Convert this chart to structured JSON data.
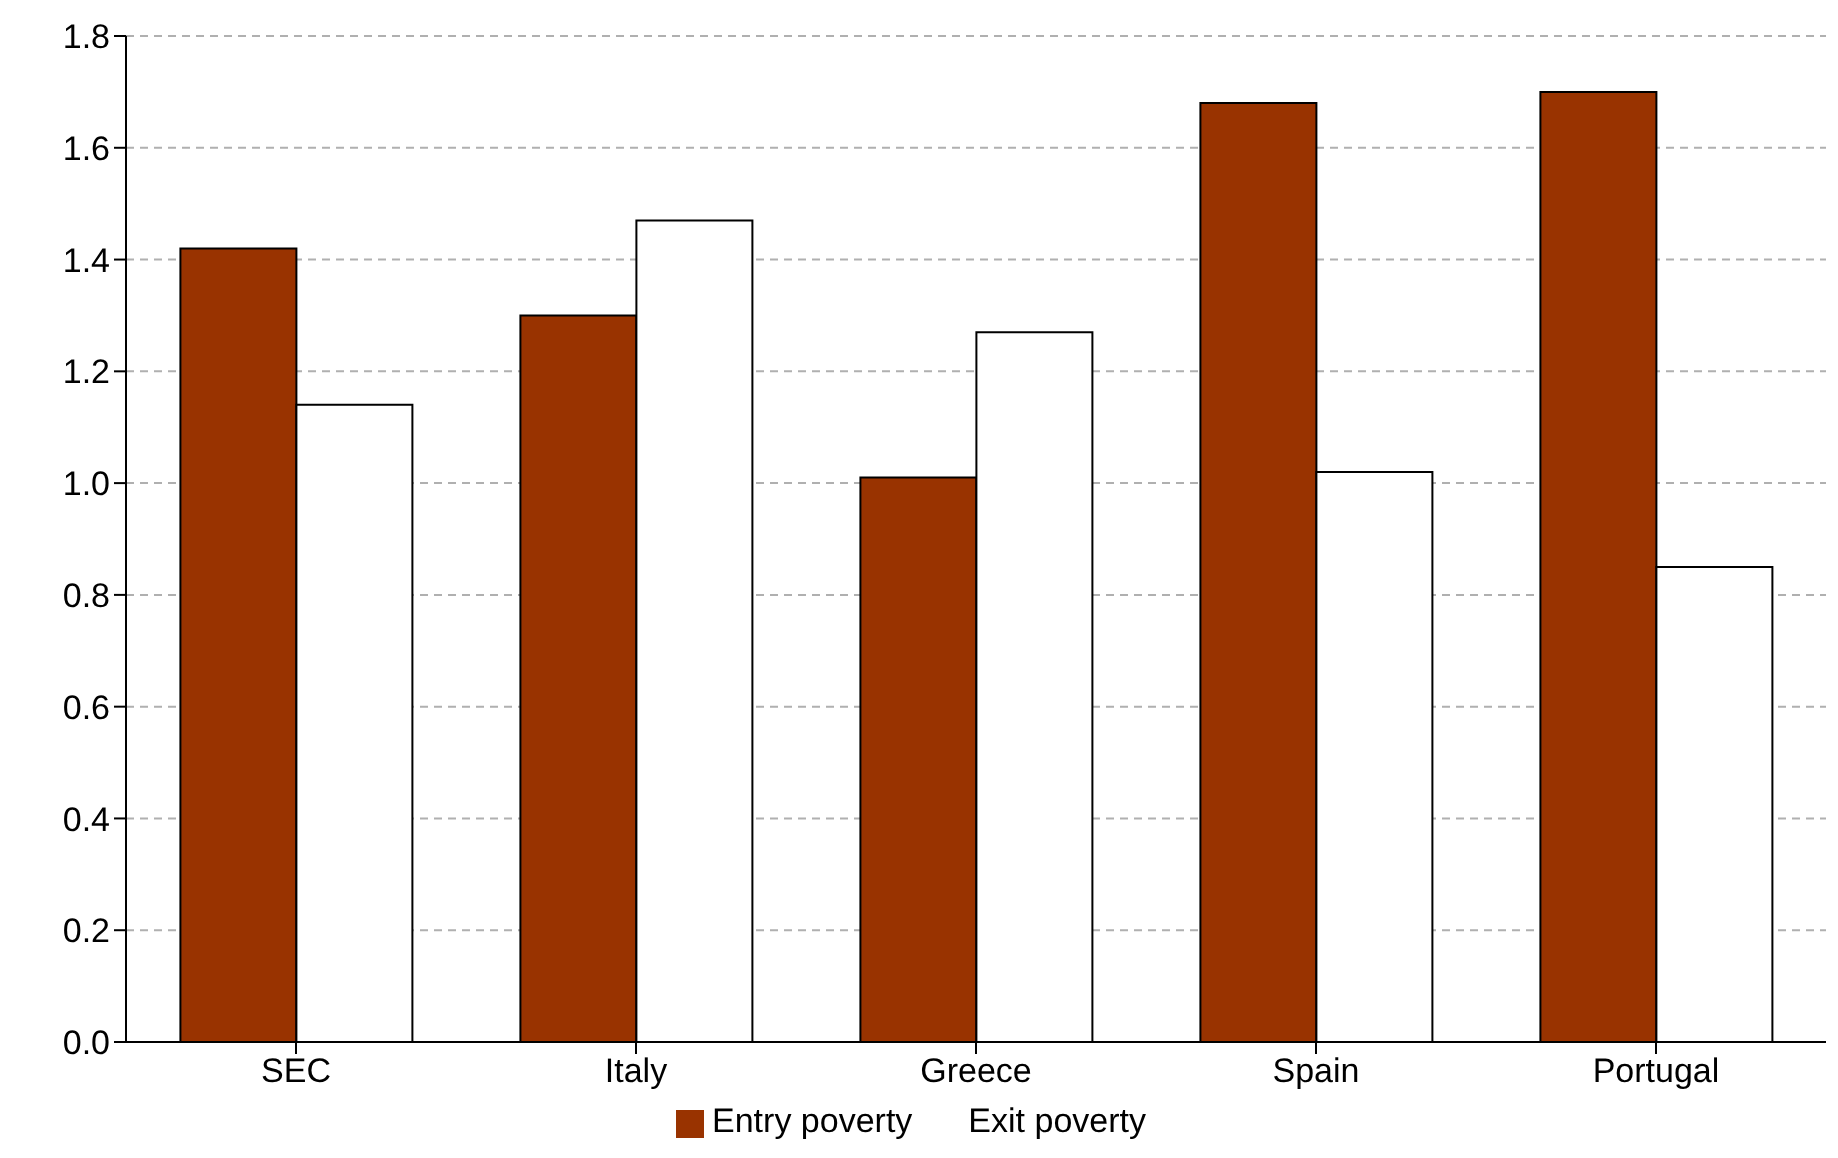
{
  "chart_data": {
    "type": "bar",
    "categories": [
      "SEC",
      "Italy",
      "Greece",
      "Spain",
      "Portugal"
    ],
    "series": [
      {
        "name": "Entry poverty",
        "color": "#993300",
        "values": [
          1.42,
          1.3,
          1.01,
          1.68,
          1.7
        ]
      },
      {
        "name": "Exit poverty",
        "color": "#ffffff",
        "values": [
          1.14,
          1.47,
          1.27,
          1.02,
          0.85
        ]
      }
    ],
    "ylim": [
      0,
      1.8
    ],
    "yticks": [
      {
        "value": 0,
        "label": "0.0"
      },
      {
        "value": 0.2,
        "label": "0.2"
      },
      {
        "value": 0.4,
        "label": "0.4"
      },
      {
        "value": 0.6,
        "label": "0.6"
      },
      {
        "value": 0.8,
        "label": "0.8"
      },
      {
        "value": 1,
        "label": "1.0"
      },
      {
        "value": 1.2,
        "label": "1.2"
      },
      {
        "value": 1.4,
        "label": "1.4"
      },
      {
        "value": 1.6,
        "label": "1.6"
      },
      {
        "value": 1.8,
        "label": "1.8"
      }
    ],
    "grid": "y",
    "legend": "bottom"
  }
}
